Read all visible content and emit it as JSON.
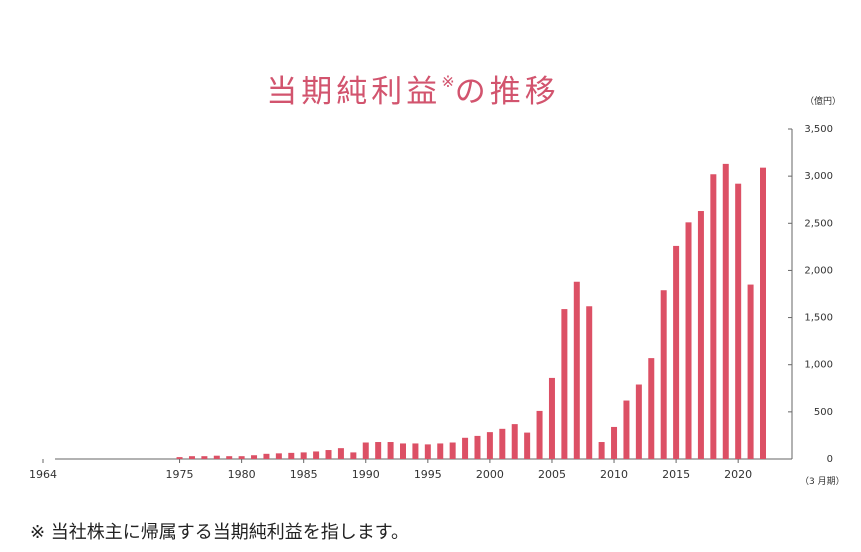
{
  "title": "当期純利益",
  "title_mark": "※",
  "title_suffix": "の推移",
  "footnote": "※ 当社株主に帰属する当期純利益を指します。",
  "colors": {
    "bar": "#dc5065",
    "title": "#d2546e",
    "axis": "#666666",
    "text": "#333333"
  },
  "chart_data": {
    "type": "bar",
    "title": "当期純利益※の推移",
    "y_unit_label": "（億円）",
    "x_unit_label": "（3 月期）",
    "ylim": [
      0,
      3500
    ],
    "y_ticks": [
      0,
      500,
      1000,
      1500,
      2000,
      2500,
      3000,
      3500
    ],
    "y_tick_labels": [
      "0",
      "500",
      "1,000",
      "1,500",
      "2,000",
      "2,500",
      "3,000",
      "3,500"
    ],
    "xlim": [
      1964,
      2022
    ],
    "x_ticks": [
      1964,
      1975,
      1980,
      1985,
      1990,
      1995,
      2000,
      2005,
      2010,
      2015,
      2020
    ],
    "grid": false,
    "categories": [
      1975,
      1976,
      1977,
      1978,
      1979,
      1980,
      1981,
      1982,
      1983,
      1984,
      1985,
      1986,
      1987,
      1988,
      1989,
      1990,
      1991,
      1992,
      1993,
      1994,
      1995,
      1996,
      1997,
      1998,
      1999,
      2000,
      2001,
      2002,
      2003,
      2004,
      2005,
      2006,
      2007,
      2008,
      2009,
      2010,
      2011,
      2012,
      2013,
      2014,
      2015,
      2016,
      2017,
      2018,
      2019,
      2020,
      2021,
      2022
    ],
    "values": [
      20,
      30,
      30,
      35,
      30,
      30,
      40,
      55,
      60,
      65,
      70,
      80,
      95,
      115,
      70,
      175,
      180,
      180,
      165,
      165,
      155,
      165,
      175,
      225,
      245,
      285,
      320,
      370,
      280,
      510,
      860,
      1590,
      1880,
      1620,
      180,
      340,
      620,
      790,
      1070,
      1790,
      2260,
      2510,
      2630,
      3020,
      3130,
      2920,
      1850,
      3090
    ]
  }
}
